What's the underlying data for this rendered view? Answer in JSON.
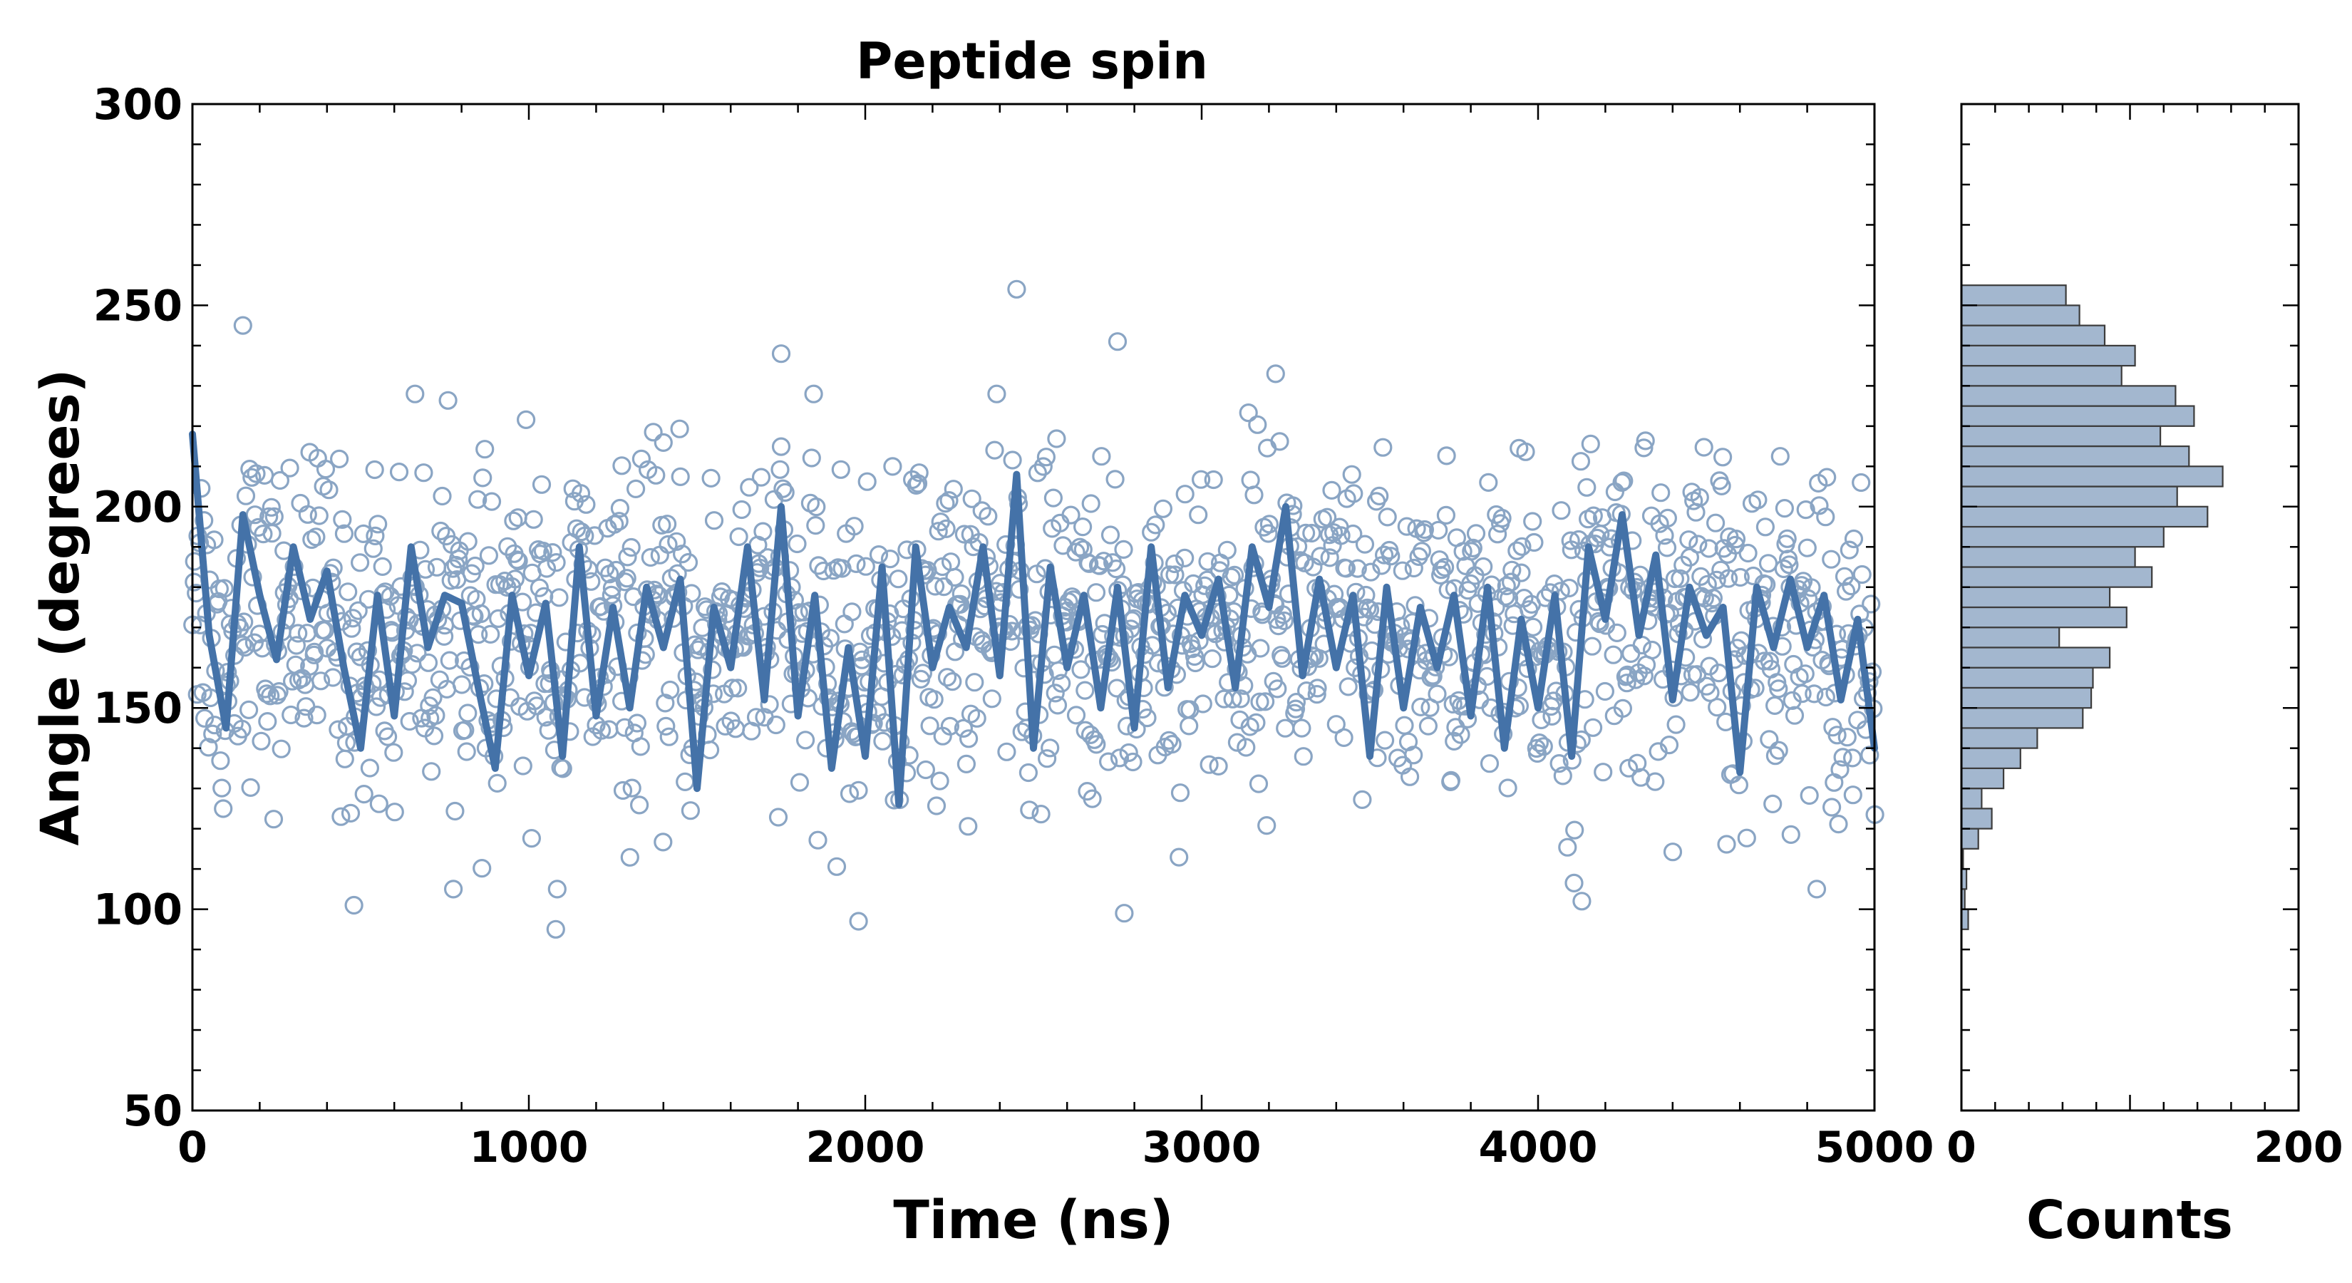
{
  "chart_data": [
    {
      "type": "scatter",
      "title": "Peptide spin",
      "xlabel": "Time (ns)",
      "ylabel": "Angle (degrees)",
      "xlim": [
        0,
        5000
      ],
      "ylim": [
        50,
        300
      ],
      "xticks": [
        0,
        1000,
        2000,
        3000,
        4000,
        5000
      ],
      "yticks": [
        50,
        100,
        150,
        200,
        250,
        300
      ],
      "series": [
        {
          "name": "samples",
          "style": "open circles",
          "color": "#8aa5c4",
          "summary": "about 2000 samples from 0 to 5000 ns, centered near 170 degrees, mostly between 115 and 215",
          "highlighted_points": [
            [
              150,
              245
            ],
            [
              2450,
              254
            ],
            [
              2750,
              241
            ],
            [
              1750,
              238
            ],
            [
              3220,
              233
            ],
            [
              1080,
              95
            ],
            [
              1980,
              97
            ],
            [
              480,
              101
            ],
            [
              2770,
              99
            ],
            [
              4130,
              102
            ]
          ]
        },
        {
          "name": "running average",
          "style": "thick line",
          "color": "#4472a8",
          "x": [
            0,
            50,
            100,
            150,
            200,
            250,
            300,
            350,
            400,
            450,
            500,
            550,
            600,
            650,
            700,
            750,
            800,
            850,
            900,
            950,
            1000,
            1050,
            1100,
            1150,
            1200,
            1250,
            1300,
            1350,
            1400,
            1450,
            1500,
            1550,
            1600,
            1650,
            1700,
            1750,
            1800,
            1850,
            1900,
            1950,
            2000,
            2050,
            2100,
            2150,
            2200,
            2250,
            2300,
            2350,
            2400,
            2450,
            2500,
            2550,
            2600,
            2650,
            2700,
            2750,
            2800,
            2850,
            2900,
            2950,
            3000,
            3050,
            3100,
            3150,
            3200,
            3250,
            3300,
            3350,
            3400,
            3450,
            3500,
            3550,
            3600,
            3650,
            3700,
            3750,
            3800,
            3850,
            3900,
            3950,
            4000,
            4050,
            4100,
            4150,
            4200,
            4250,
            4300,
            4350,
            4400,
            4450,
            4500,
            4550,
            4600,
            4650,
            4700,
            4750,
            4800,
            4850,
            4900,
            4950,
            5000
          ],
          "y": [
            218,
            168,
            145,
            198,
            178,
            162,
            190,
            172,
            184,
            160,
            140,
            178,
            148,
            190,
            165,
            178,
            176,
            155,
            135,
            178,
            158,
            176,
            138,
            190,
            148,
            175,
            150,
            180,
            165,
            182,
            130,
            175,
            160,
            190,
            152,
            200,
            148,
            178,
            135,
            165,
            138,
            185,
            126,
            190,
            160,
            175,
            165,
            190,
            158,
            208,
            140,
            185,
            160,
            178,
            150,
            180,
            145,
            190,
            155,
            178,
            168,
            182,
            155,
            190,
            175,
            200,
            158,
            182,
            160,
            178,
            138,
            180,
            150,
            175,
            160,
            178,
            148,
            180,
            140,
            172,
            150,
            178,
            138,
            190,
            172,
            198,
            168,
            188,
            152,
            180,
            168,
            175,
            134,
            180,
            165,
            182,
            165,
            178,
            152,
            172,
            140
          ]
        }
      ]
    },
    {
      "type": "bar",
      "orientation": "horizontal",
      "xlabel": "Counts",
      "xlim": [
        0,
        200
      ],
      "xticks": [
        0,
        200
      ],
      "ylim": [
        50,
        300
      ],
      "color": "#a3b7cf",
      "bin_edges": [
        95,
        100,
        105,
        110,
        115,
        120,
        125,
        130,
        135,
        140,
        145,
        150,
        155,
        160,
        165,
        170,
        175,
        180,
        185,
        190,
        195,
        200,
        205,
        210,
        215,
        220,
        225,
        230,
        235,
        240,
        245,
        250,
        255
      ],
      "counts": [
        4,
        2,
        3,
        1,
        10,
        18,
        12,
        25,
        35,
        45,
        72,
        77,
        78,
        88,
        58,
        98,
        88,
        113,
        103,
        120,
        146,
        128,
        155,
        135,
        118,
        138,
        127,
        95,
        103,
        85,
        70,
        62
      ]
    }
  ]
}
